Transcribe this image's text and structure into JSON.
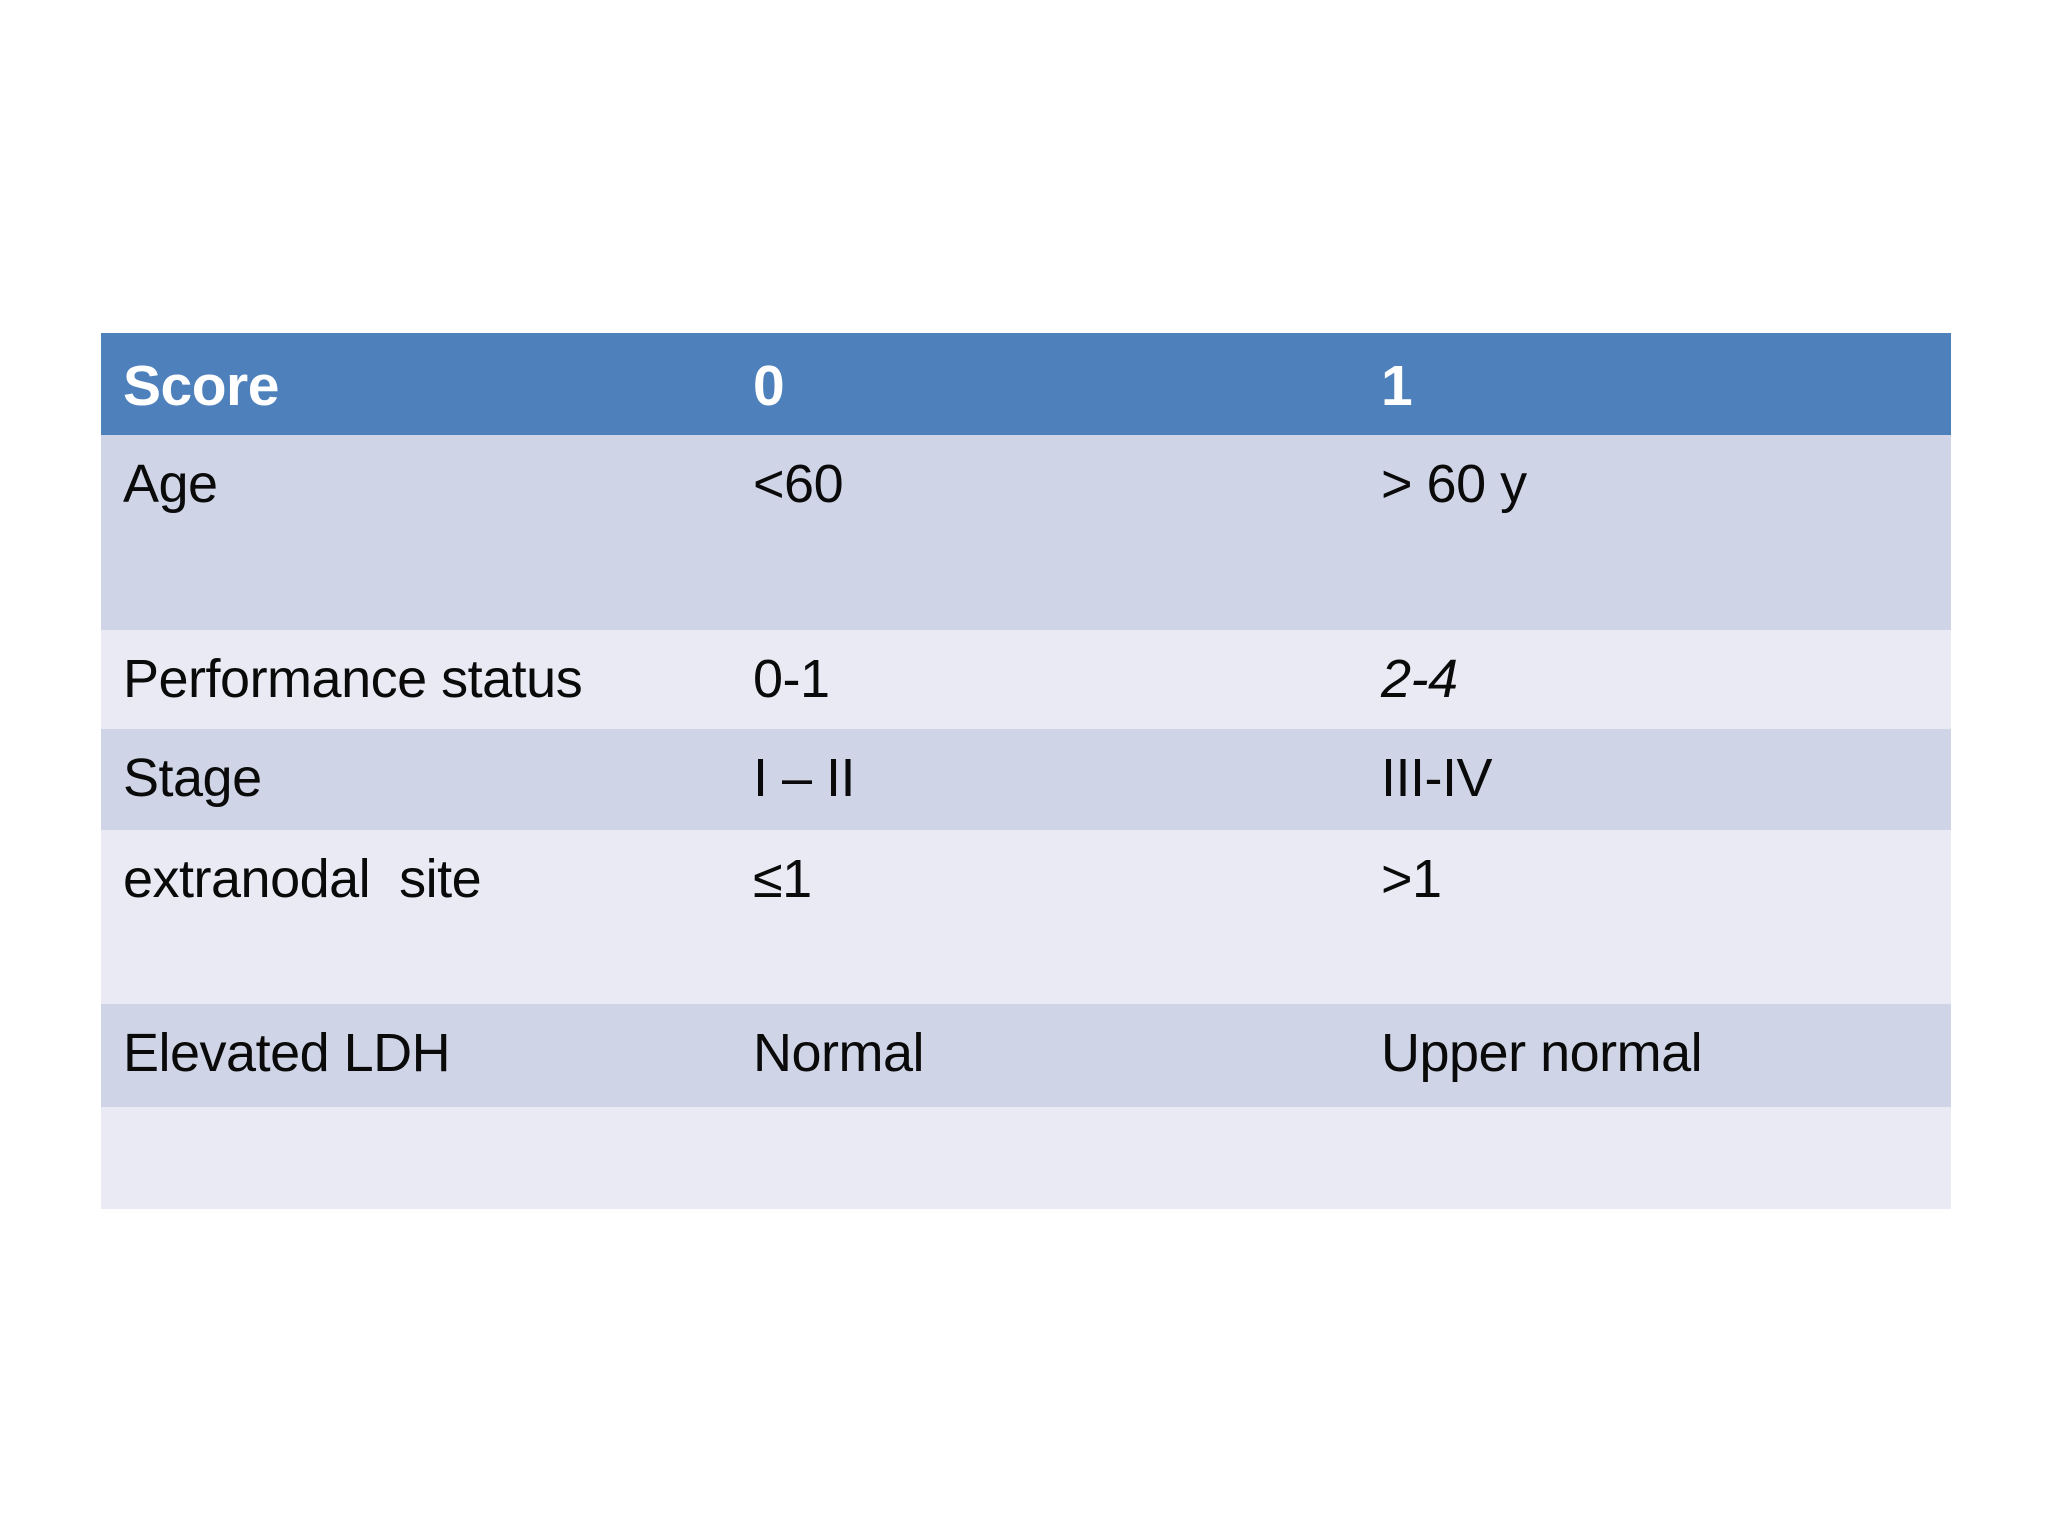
{
  "colors": {
    "slide_bg": "#ffffff",
    "header_bg": "#4e80bc",
    "header_text": "#ffffff",
    "band_dark": "#cfd5e6",
    "band_light": "#e9eaf3",
    "body_text": "#0a0a0a"
  },
  "table": {
    "header": {
      "col1": "Score",
      "col2": "0",
      "col3": "1"
    },
    "rows": [
      {
        "label": "Age",
        "score0": "<60",
        "score1": "> 60 y"
      },
      {
        "label": "Performance status",
        "score0": "0-1",
        "score1": "2-4"
      },
      {
        "label": "Stage",
        "score0": "I – II",
        "score1": "III-IV"
      },
      {
        "label": "extranodal  site",
        "score0": "≤1",
        "score1": ">1"
      },
      {
        "label": "Elevated LDH",
        "score0": "Normal",
        "score1": "Upper normal"
      },
      {
        "label": "",
        "score0": "",
        "score1": ""
      }
    ]
  }
}
